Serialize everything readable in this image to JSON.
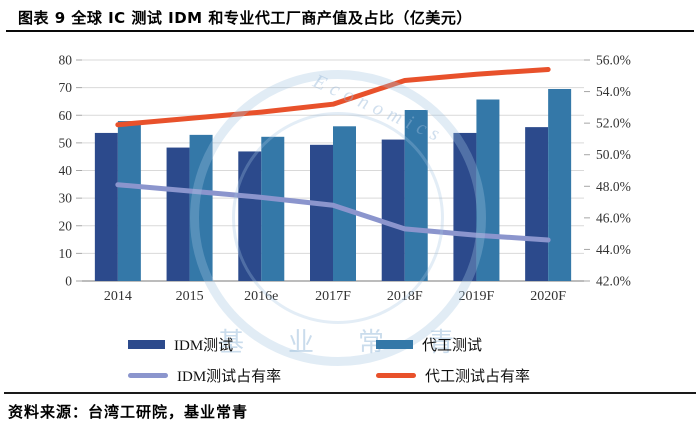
{
  "header": {
    "title": "图表 9 全球 IC 测试 IDM 和专业代工厂商产值及占比（亿美元）"
  },
  "footer": {
    "source_note": "资料来源：台湾工研院，基业常青"
  },
  "watermark": {
    "arc_text": "Economics",
    "cjk_text": "基业常青"
  },
  "colors": {
    "idm_bar": "#2c4a8c",
    "foundry_bar": "#3478a8",
    "idm_share_line": "#8b95cd",
    "foundry_share_line": "#e8512b",
    "grid": "#d9d9d9",
    "baseline": "#a6a6a6",
    "axis_text": "#333333"
  },
  "chart_data": {
    "type": "bar+line combo",
    "title": "全球 IC 测试 IDM 和专业代工厂商产值及占比（亿美元）",
    "categories": [
      "2014",
      "2015",
      "2016e",
      "2017F",
      "2018F",
      "2019F",
      "2020F"
    ],
    "series": [
      {
        "name": "IDM测试",
        "type": "bar",
        "axis": "left",
        "color": "#2c4a8c",
        "values": [
          53.6,
          48.3,
          46.9,
          49.3,
          51.2,
          53.6,
          55.7
        ]
      },
      {
        "name": "代工测试",
        "type": "bar",
        "axis": "left",
        "color": "#3478a8",
        "values": [
          57.9,
          52.9,
          52.2,
          56.0,
          61.9,
          65.7,
          69.5
        ]
      },
      {
        "name": "IDM测试占有率",
        "type": "line",
        "axis": "right",
        "color": "#8b95cd",
        "values": [
          48.1,
          47.7,
          47.3,
          46.8,
          45.3,
          44.9,
          44.6
        ]
      },
      {
        "name": "代工测试占有率",
        "type": "line",
        "axis": "right",
        "color": "#e8512b",
        "values": [
          51.9,
          52.3,
          52.7,
          53.2,
          54.7,
          55.1,
          55.4
        ]
      }
    ],
    "left_axis": {
      "min": 0,
      "max": 80,
      "step": 10,
      "ticks": [
        "0",
        "10",
        "20",
        "30",
        "40",
        "50",
        "60",
        "70",
        "80"
      ]
    },
    "right_axis": {
      "min": 42,
      "max": 56,
      "step": 2,
      "ticks": [
        "42.0%",
        "44.0%",
        "46.0%",
        "48.0%",
        "50.0%",
        "52.0%",
        "54.0%",
        "56.0%"
      ]
    },
    "grid": true,
    "legend_position": "bottom"
  }
}
